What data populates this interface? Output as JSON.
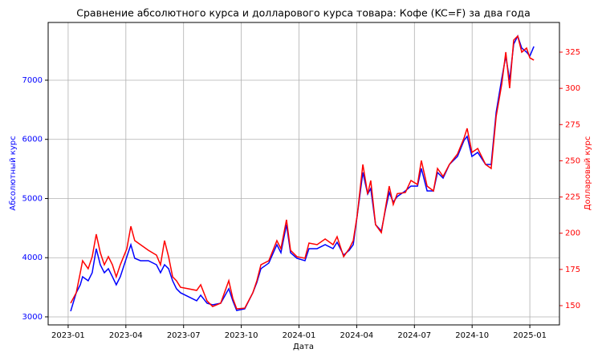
{
  "chart_data": {
    "type": "line",
    "title": "Сравнение абсолютного курса и долларового курса товара: Кофе (KC=F) за два года",
    "xlabel": "Дата",
    "ylabel": "Абсолютный курс",
    "y2label": "Долларовый курс",
    "grid": true,
    "xlim": [
      -1.04,
      25.54
    ],
    "xticks": [
      {
        "value": 0,
        "label": "2023-01"
      },
      {
        "value": 3,
        "label": "2023-04"
      },
      {
        "value": 6,
        "label": "2023-07"
      },
      {
        "value": 9,
        "label": "2023-10"
      },
      {
        "value": 12,
        "label": "2024-01"
      },
      {
        "value": 15,
        "label": "2024-04"
      },
      {
        "value": 18,
        "label": "2024-07"
      },
      {
        "value": 21,
        "label": "2024-10"
      },
      {
        "value": 24,
        "label": "2025-01"
      }
    ],
    "ylim": [
      2864,
      7976
    ],
    "yticks": [
      3000,
      4000,
      5000,
      6000,
      7000
    ],
    "ycolor": "#0000ff",
    "y2lim": [
      136.7,
      345.5
    ],
    "y2ticks": [
      150,
      175,
      200,
      225,
      250,
      275,
      300,
      325
    ],
    "y2color": "#ff0000",
    "x": [
      0.13,
      0.42,
      0.63,
      0.75,
      1.04,
      1.25,
      1.46,
      1.67,
      1.88,
      2.09,
      2.3,
      2.5,
      2.71,
      3.05,
      3.26,
      3.46,
      3.76,
      4.17,
      4.59,
      4.8,
      5.01,
      5.22,
      5.43,
      5.63,
      5.84,
      6.26,
      6.68,
      6.89,
      7.22,
      7.51,
      7.93,
      8.35,
      8.56,
      8.76,
      9.18,
      9.6,
      9.81,
      10.02,
      10.43,
      10.85,
      11.06,
      11.35,
      11.56,
      11.89,
      12.31,
      12.52,
      12.94,
      13.36,
      13.77,
      13.98,
      14.32,
      14.61,
      14.82,
      15.03,
      15.32,
      15.57,
      15.73,
      15.98,
      16.28,
      16.49,
      16.69,
      16.9,
      17.11,
      17.53,
      17.82,
      18.16,
      18.36,
      18.66,
      18.99,
      19.2,
      19.49,
      19.82,
      20.24,
      20.58,
      20.74,
      20.99,
      21.29,
      21.7,
      21.99,
      22.25,
      22.54,
      22.75,
      22.95,
      23.16,
      23.37,
      23.58,
      23.83,
      24.0,
      24.21
    ],
    "series": [
      {
        "color": "#0000ff",
        "axis": "y",
        "values": [
          3095,
          3407,
          3542,
          3678,
          3610,
          3746,
          4153,
          3881,
          3746,
          3814,
          3678,
          3542,
          3678,
          4017,
          4220,
          3990,
          3949,
          3949,
          3881,
          3746,
          3881,
          3814,
          3610,
          3475,
          3407,
          3339,
          3271,
          3366,
          3231,
          3203,
          3231,
          3475,
          3271,
          3108,
          3136,
          3407,
          3583,
          3814,
          3909,
          4220,
          4085,
          4559,
          4085,
          3990,
          3949,
          4153,
          4153,
          4220,
          4153,
          4261,
          4044,
          4125,
          4220,
          4722,
          5441,
          5075,
          5170,
          4559,
          4451,
          4803,
          5102,
          4939,
          5034,
          5129,
          5210,
          5210,
          5509,
          5129,
          5129,
          5441,
          5346,
          5576,
          5712,
          5983,
          6051,
          5712,
          5780,
          5576,
          5576,
          6458,
          7027,
          7407,
          7000,
          7610,
          7746,
          7543,
          7475,
          7407,
          7570
        ]
      },
      {
        "color": "#ff0000",
        "axis": "y2",
        "values": [
          151.7,
          158.9,
          172.7,
          181.0,
          175.5,
          183.8,
          199.3,
          186.6,
          178.2,
          183.8,
          178.2,
          169.9,
          178.2,
          189.3,
          204.8,
          194.9,
          192.1,
          188.2,
          184.9,
          178.2,
          194.9,
          183.8,
          169.9,
          167.2,
          162.7,
          161.6,
          160.5,
          164.4,
          153.3,
          149.4,
          151.7,
          167.2,
          155.0,
          147.8,
          148.3,
          158.9,
          167.2,
          178.2,
          181.0,
          194.9,
          189.3,
          209.3,
          188.2,
          183.8,
          182.7,
          193.2,
          192.1,
          196.0,
          192.1,
          197.6,
          183.8,
          189.3,
          194.9,
          212.6,
          247.5,
          227.0,
          236.4,
          205.9,
          200.4,
          217.0,
          232.5,
          219.8,
          227.3,
          228.1,
          236.4,
          233.6,
          250.2,
          232.5,
          229.2,
          244.7,
          239.2,
          247.5,
          254.7,
          265.7,
          272.4,
          255.8,
          258.5,
          247.5,
          244.7,
          280.7,
          302.9,
          325.0,
          300.1,
          333.3,
          336.1,
          325.0,
          327.8,
          321.1,
          319.5
        ]
      }
    ]
  }
}
